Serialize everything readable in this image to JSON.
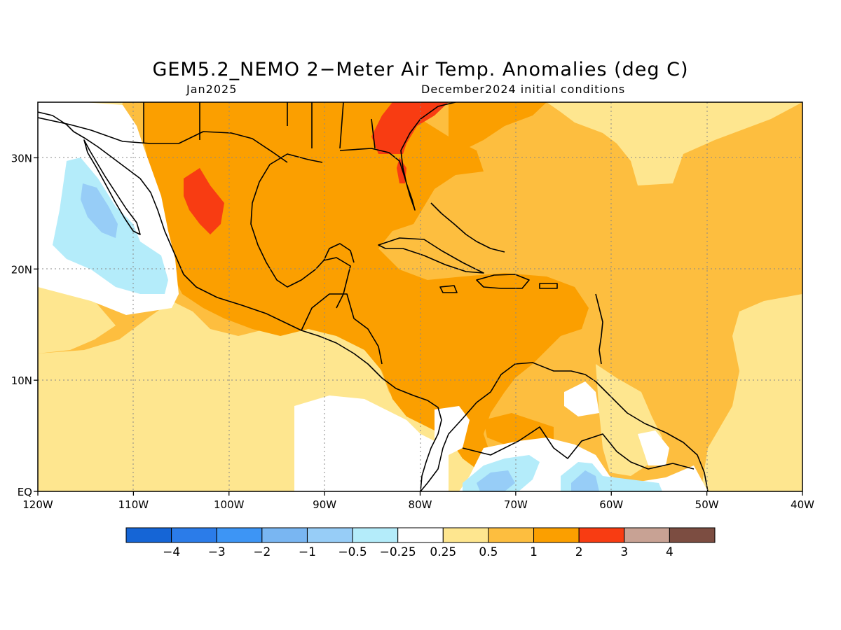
{
  "title": "GEM5.2_NEMO 2−Meter Air Temp. Anomalies (deg C)",
  "subtitle_left": "Jan2025",
  "subtitle_right": "December2024 initial conditions",
  "map": {
    "lon_range": [
      -120,
      -40
    ],
    "lat_range": [
      0,
      35
    ],
    "grid": "dotted",
    "x_ticks": [
      "120W",
      "110W",
      "100W",
      "90W",
      "80W",
      "70W",
      "60W",
      "50W",
      "40W"
    ],
    "y_ticks": [
      "30N",
      "20N",
      "10N",
      "EQ"
    ]
  },
  "colorbar": {
    "colors": [
      "#1565d6",
      "#2b7ce9",
      "#3d95f5",
      "#79b6f2",
      "#97cdf7",
      "#b4ecfa",
      "#ffffff",
      "#fee68f",
      "#fdbe3f",
      "#fb9f00",
      "#f83c12",
      "#c8a294",
      "#7c4d41"
    ],
    "labels": [
      "−4",
      "−3",
      "−2",
      "−1",
      "−0.5",
      "−0.25",
      "0.25",
      "0.5",
      "1",
      "2",
      "3",
      "4"
    ]
  },
  "palette": {
    "ocean_base": "#fdbe3f",
    "light": "#fee68f",
    "strong": "#fb9f00",
    "max": "#f83c12",
    "neutral": "#ffffff",
    "cool_light": "#b4ecfa",
    "cool": "#97cdf7",
    "cool_mid": "#79b6f2"
  }
}
